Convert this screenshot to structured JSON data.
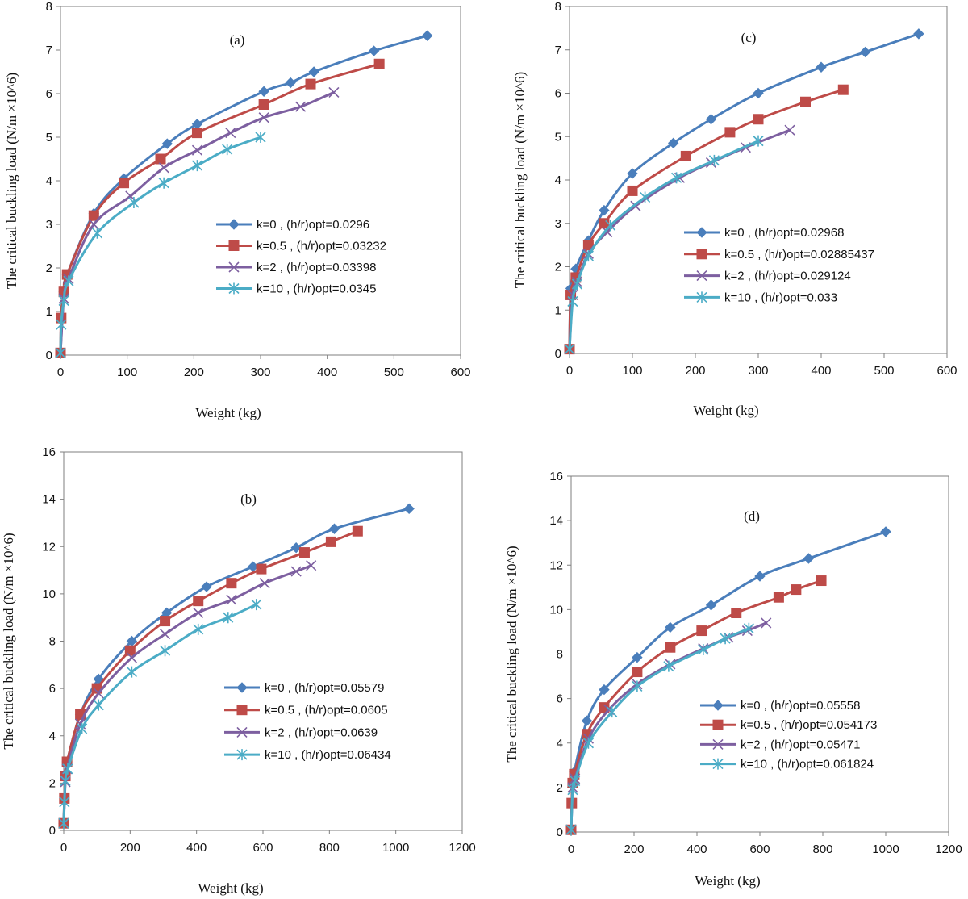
{
  "colors": {
    "k0": "#4A7EBB",
    "k05": "#BE4B48",
    "k2": "#7D5FA0",
    "k10": "#4BACC6"
  },
  "chart_data": [
    {
      "type": "line",
      "panel": "(a)",
      "xlabel": "Weight (kg)",
      "ylabel": "The critical buckling load (N/m ×10^6)",
      "xlim": [
        0,
        600
      ],
      "ylim": [
        0,
        8
      ],
      "xticks": [
        0,
        100,
        200,
        300,
        400,
        500,
        600
      ],
      "yticks": [
        0,
        1,
        2,
        3,
        4,
        5,
        6,
        7,
        8
      ],
      "legend_position": "lower-right",
      "series": [
        {
          "name": "k=0 , (h/r)opt=0.0296",
          "marker": "diamond",
          "color": "#4A7EBB",
          "x": [
            0,
            5,
            10,
            50,
            95,
            160,
            205,
            305,
            345,
            380,
            470,
            550
          ],
          "y": [
            0.05,
            1.45,
            1.85,
            3.25,
            4.05,
            4.85,
            5.3,
            6.05,
            6.25,
            6.5,
            6.98,
            7.33
          ]
        },
        {
          "name": "k=0.5 , (h/r)opt=0.03232",
          "marker": "square",
          "color": "#BE4B48",
          "x": [
            0,
            1,
            5,
            10,
            50,
            95,
            150,
            205,
            305,
            375,
            478
          ],
          "y": [
            0.05,
            0.85,
            1.45,
            1.85,
            3.2,
            3.95,
            4.5,
            5.1,
            5.75,
            6.22,
            6.68
          ]
        },
        {
          "name": "k=2 , (h/r)opt=0.03398",
          "marker": "x",
          "color": "#7D5FA0",
          "x": [
            0,
            5,
            12,
            50,
            105,
            155,
            205,
            255,
            305,
            360,
            410
          ],
          "y": [
            0.05,
            1.3,
            1.75,
            3.0,
            3.65,
            4.3,
            4.7,
            5.1,
            5.45,
            5.7,
            6.03
          ]
        },
        {
          "name": "k=10 , (h/r)opt=0.0345",
          "marker": "asterisk",
          "color": "#4BACC6",
          "x": [
            0,
            1,
            5,
            12,
            55,
            110,
            155,
            205,
            250,
            300
          ],
          "y": [
            0.05,
            0.7,
            1.25,
            1.7,
            2.8,
            3.5,
            3.95,
            4.35,
            4.72,
            5.0
          ]
        }
      ]
    },
    {
      "type": "line",
      "panel": "(b)",
      "xlabel": "Weight (kg)",
      "ylabel": "The critical buckling load (N/m ×10^6)",
      "xlim": [
        0,
        1200
      ],
      "ylim": [
        0,
        16
      ],
      "xticks": [
        0,
        200,
        400,
        600,
        800,
        1000,
        1200
      ],
      "yticks": [
        0,
        2,
        4,
        6,
        8,
        10,
        12,
        14,
        16
      ],
      "legend_position": "lower-right",
      "series": [
        {
          "name": "k=0 , (h/r)opt=0.05579",
          "marker": "diamond",
          "color": "#4A7EBB",
          "x": [
            0,
            5,
            10,
            50,
            105,
            205,
            310,
            430,
            570,
            700,
            815,
            1040
          ],
          "y": [
            0.3,
            2.3,
            2.9,
            4.9,
            6.4,
            8.0,
            9.2,
            10.3,
            11.15,
            11.95,
            12.75,
            13.6
          ]
        },
        {
          "name": "k=0.5 , (h/r)opt=0.0605",
          "marker": "square",
          "color": "#BE4B48",
          "x": [
            0,
            2,
            5,
            10,
            50,
            100,
            200,
            305,
            405,
            505,
            595,
            725,
            805,
            885
          ],
          "y": [
            0.3,
            1.35,
            2.3,
            2.9,
            4.9,
            6.0,
            7.6,
            8.85,
            9.7,
            10.45,
            11.05,
            11.75,
            12.2,
            12.65
          ]
        },
        {
          "name": "k=2 , (h/r)opt=0.0639",
          "marker": "x",
          "color": "#7D5FA0",
          "x": [
            0,
            5,
            10,
            50,
            105,
            205,
            305,
            405,
            505,
            605,
            700,
            745
          ],
          "y": [
            0.3,
            2.05,
            2.6,
            4.5,
            5.8,
            7.3,
            8.3,
            9.2,
            9.75,
            10.45,
            10.95,
            11.2
          ]
        },
        {
          "name": "k=10 , (h/r)opt=0.06434",
          "marker": "asterisk",
          "color": "#4BACC6",
          "x": [
            0,
            2,
            5,
            12,
            55,
            105,
            205,
            305,
            405,
            495,
            580
          ],
          "y": [
            0.3,
            1.2,
            2.1,
            2.6,
            4.3,
            5.3,
            6.7,
            7.6,
            8.5,
            9.0,
            9.55
          ]
        }
      ]
    },
    {
      "type": "line",
      "panel": "(c)",
      "xlabel": "Weight (kg)",
      "ylabel": "The critical buckling load (N/m ×10^6)",
      "xlim": [
        0,
        600
      ],
      "ylim": [
        0,
        8
      ],
      "xticks": [
        0,
        100,
        200,
        300,
        400,
        500,
        600
      ],
      "yticks": [
        0,
        1,
        2,
        3,
        4,
        5,
        6,
        7,
        8
      ],
      "legend_position": "lower-right",
      "series": [
        {
          "name": "k=0 , (h/r)opt=0.02968",
          "marker": "diamond",
          "color": "#4A7EBB",
          "x": [
            0,
            2,
            10,
            30,
            55,
            100,
            165,
            225,
            300,
            400,
            470,
            555
          ],
          "y": [
            0.1,
            1.5,
            1.95,
            2.6,
            3.3,
            4.15,
            4.85,
            5.4,
            6.0,
            6.6,
            6.95,
            7.37
          ]
        },
        {
          "name": "k=0.5 , (h/r)opt=0.02885437",
          "marker": "square",
          "color": "#BE4B48",
          "x": [
            0,
            2,
            10,
            30,
            55,
            100,
            185,
            255,
            300,
            375,
            435
          ],
          "y": [
            0.1,
            1.35,
            1.75,
            2.5,
            3.0,
            3.75,
            4.55,
            5.1,
            5.4,
            5.8,
            6.08
          ]
        },
        {
          "name": "k=2 , (h/r)opt=0.029124",
          "marker": "x",
          "color": "#7D5FA0",
          "x": [
            0,
            5,
            12,
            30,
            60,
            105,
            175,
            225,
            280,
            350
          ],
          "y": [
            0.1,
            1.35,
            1.65,
            2.3,
            2.8,
            3.4,
            4.05,
            4.4,
            4.75,
            5.15
          ]
        },
        {
          "name": "k=10 , (h/r)opt=0.033",
          "marker": "asterisk",
          "color": "#4BACC6",
          "x": [
            0,
            5,
            12,
            30,
            65,
            120,
            170,
            230,
            300
          ],
          "y": [
            0.1,
            1.2,
            1.6,
            2.25,
            2.95,
            3.6,
            4.05,
            4.45,
            4.9
          ]
        }
      ]
    },
    {
      "type": "line",
      "panel": "(d)",
      "xlabel": "Weight (kg)",
      "ylabel": "The critical buckling load (N/m ×10^6)",
      "xlim": [
        0,
        1200
      ],
      "ylim": [
        0,
        16
      ],
      "xticks": [
        0,
        200,
        400,
        600,
        800,
        1000,
        1200
      ],
      "yticks": [
        0,
        2,
        4,
        6,
        8,
        10,
        12,
        14,
        16
      ],
      "legend_position": "lower-right",
      "series": [
        {
          "name": "k=0 , (h/r)opt=0.05558",
          "marker": "diamond",
          "color": "#4A7EBB",
          "x": [
            0,
            5,
            10,
            50,
            105,
            210,
            315,
            445,
            600,
            755,
            1000
          ],
          "y": [
            0.1,
            2.1,
            2.7,
            5.0,
            6.4,
            7.85,
            9.2,
            10.2,
            11.5,
            12.3,
            13.5
          ]
        },
        {
          "name": "k=0.5 , (h/r)opt=0.054173",
          "marker": "square",
          "color": "#BE4B48",
          "x": [
            0,
            2,
            5,
            10,
            50,
            105,
            210,
            315,
            415,
            525,
            660,
            715,
            795
          ],
          "y": [
            0.1,
            1.3,
            2.2,
            2.6,
            4.4,
            5.6,
            7.2,
            8.3,
            9.05,
            9.85,
            10.55,
            10.9,
            11.3
          ]
        },
        {
          "name": "k=2 , (h/r)opt=0.05471",
          "marker": "x",
          "color": "#7D5FA0",
          "x": [
            0,
            5,
            12,
            55,
            120,
            210,
            315,
            420,
            500,
            560,
            620
          ],
          "y": [
            0.1,
            2.0,
            2.4,
            4.2,
            5.5,
            6.65,
            7.55,
            8.25,
            8.75,
            9.05,
            9.4
          ]
        },
        {
          "name": "k=10 , (h/r)opt=0.061824",
          "marker": "asterisk",
          "color": "#4BACC6",
          "x": [
            0,
            5,
            12,
            55,
            130,
            210,
            310,
            420,
            490,
            565
          ],
          "y": [
            0.1,
            1.9,
            2.3,
            4.0,
            5.4,
            6.55,
            7.45,
            8.2,
            8.7,
            9.15
          ]
        }
      ]
    }
  ]
}
